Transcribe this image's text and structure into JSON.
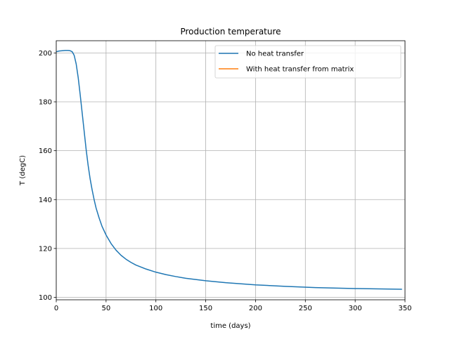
{
  "chart_data": {
    "type": "line",
    "title": "Production temperature",
    "xlabel": "time (days)",
    "ylabel": "T (degC)",
    "xlim": [
      0,
      350
    ],
    "ylim": [
      99,
      205
    ],
    "xticks": [
      0,
      50,
      100,
      150,
      200,
      250,
      300,
      350
    ],
    "yticks": [
      100,
      120,
      140,
      160,
      180,
      200
    ],
    "grid": true,
    "legend_position": "upper right",
    "series": [
      {
        "name": "No heat transfer",
        "color": "#1f77b4",
        "x": [
          0,
          3,
          6,
          9,
          12,
          14,
          16,
          18,
          20,
          22,
          24,
          26,
          28,
          30,
          32,
          34,
          36,
          38,
          40,
          43,
          46,
          50,
          55,
          60,
          65,
          70,
          75,
          80,
          90,
          100,
          110,
          120,
          130,
          140,
          150,
          170,
          200,
          230,
          260,
          300,
          347
        ],
        "y": [
          200.5,
          200.8,
          200.9,
          201.0,
          201.0,
          200.9,
          200.5,
          199.0,
          195.5,
          190.0,
          183.0,
          175.5,
          168.0,
          160.5,
          154.0,
          148.5,
          144.0,
          140.0,
          136.5,
          132.5,
          129.0,
          125.5,
          122.0,
          119.3,
          117.2,
          115.6,
          114.3,
          113.2,
          111.6,
          110.3,
          109.3,
          108.5,
          107.8,
          107.3,
          106.8,
          106.0,
          105.1,
          104.5,
          104.0,
          103.6,
          103.3
        ]
      },
      {
        "name": "With heat transfer from matrix",
        "color": "#ff7f0e",
        "x": [],
        "y": []
      }
    ]
  }
}
